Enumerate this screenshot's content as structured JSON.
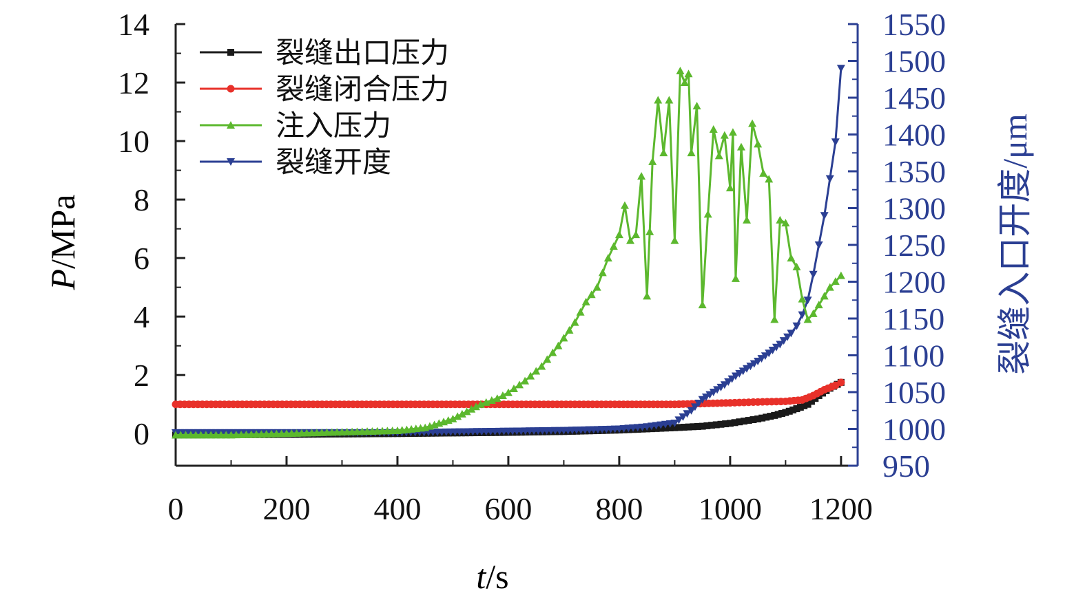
{
  "chart_data": {
    "type": "line",
    "x_axis": {
      "label_italic": "t",
      "label_rest": "/s",
      "range": [
        0,
        1230
      ],
      "ticks": [
        0,
        200,
        400,
        600,
        800,
        1000,
        1200
      ],
      "tick_labels": [
        "0",
        "200",
        "400",
        "600",
        "800",
        "1000",
        "1200"
      ]
    },
    "y_axis_left": {
      "label_italic": "P",
      "label_rest": "/MPa",
      "range": [
        -1.1,
        14
      ],
      "ticks": [
        0,
        2,
        4,
        6,
        8,
        10,
        12,
        14
      ],
      "tick_labels": [
        "0",
        "2",
        "4",
        "6",
        "8",
        "10",
        "12",
        "14"
      ]
    },
    "y_axis_right": {
      "label": "裂缝入口开度/μm",
      "color": "#2b3f93",
      "range": [
        950,
        1550
      ],
      "ticks": [
        950,
        1000,
        1050,
        1100,
        1150,
        1200,
        1250,
        1300,
        1350,
        1400,
        1450,
        1500,
        1550
      ],
      "tick_labels": [
        "950",
        "1000",
        "1050",
        "1100",
        "1150",
        "1200",
        "1250",
        "1300",
        "1350",
        "1400",
        "1450",
        "1500",
        "1550"
      ]
    },
    "legend": {
      "placement": "top-left"
    },
    "series": [
      {
        "name": "裂缝出口压力",
        "color": "#1a1a1a",
        "marker": "square",
        "axis": "left",
        "x": [
          0,
          200,
          400,
          500,
          600,
          700,
          800,
          850,
          900,
          950,
          1000,
          1050,
          1080,
          1100,
          1120,
          1140,
          1160,
          1180,
          1200
        ],
        "y": [
          -0.05,
          -0.03,
          0.0,
          0.02,
          0.04,
          0.07,
          0.12,
          0.16,
          0.2,
          0.25,
          0.35,
          0.5,
          0.62,
          0.72,
          0.85,
          1.0,
          1.3,
          1.55,
          1.75
        ]
      },
      {
        "name": "裂缝闭合压力",
        "color": "#e8312a",
        "marker": "circle",
        "axis": "left",
        "x": [
          0,
          200,
          400,
          600,
          800,
          900,
          1000,
          1050,
          1100,
          1130,
          1150,
          1170,
          1190,
          1200
        ],
        "y": [
          1.0,
          1.0,
          1.0,
          1.0,
          1.0,
          1.0,
          1.05,
          1.08,
          1.1,
          1.15,
          1.3,
          1.5,
          1.65,
          1.75
        ]
      },
      {
        "name": "注入压力",
        "color": "#5cb82e",
        "marker": "triangle-up",
        "axis": "left",
        "x": [
          0,
          100,
          200,
          300,
          400,
          450,
          500,
          550,
          580,
          600,
          630,
          660,
          690,
          720,
          740,
          760,
          780,
          800,
          810,
          820,
          830,
          840,
          850,
          855,
          860,
          870,
          880,
          890,
          900,
          910,
          918,
          925,
          930,
          940,
          950,
          960,
          970,
          980,
          990,
          1000,
          1005,
          1010,
          1020,
          1030,
          1040,
          1050,
          1060,
          1070,
          1080,
          1090,
          1100,
          1110,
          1120,
          1130,
          1140,
          1150,
          1160,
          1170,
          1180,
          1190,
          1200
        ],
        "y": [
          -0.05,
          -0.05,
          0.0,
          0.05,
          0.1,
          0.2,
          0.5,
          1.0,
          1.2,
          1.4,
          1.8,
          2.3,
          3.0,
          3.8,
          4.5,
          5.0,
          6.0,
          6.8,
          7.8,
          6.6,
          6.8,
          8.8,
          4.7,
          6.9,
          9.3,
          11.4,
          9.6,
          11.4,
          6.6,
          12.4,
          12.0,
          12.3,
          9.6,
          11.2,
          4.4,
          7.5,
          10.4,
          9.5,
          10.2,
          8.4,
          10.3,
          5.3,
          9.8,
          7.3,
          10.6,
          9.9,
          8.9,
          8.7,
          3.9,
          7.3,
          7.2,
          6.0,
          5.7,
          4.6,
          3.9,
          4.1,
          4.4,
          4.7,
          5.0,
          5.2,
          5.4
        ]
      },
      {
        "name": "裂缝开度",
        "color": "#2b3f93",
        "marker": "triangle-down",
        "axis": "right",
        "x": [
          0,
          200,
          400,
          600,
          700,
          800,
          850,
          900,
          930,
          950,
          970,
          990,
          1010,
          1030,
          1050,
          1070,
          1090,
          1110,
          1120,
          1130,
          1140,
          1150,
          1160,
          1170,
          1180,
          1190,
          1200
        ],
        "y": [
          995,
          995,
          995,
          997,
          998,
          1000,
          1003,
          1008,
          1025,
          1040,
          1050,
          1060,
          1072,
          1082,
          1092,
          1103,
          1115,
          1130,
          1140,
          1155,
          1175,
          1210,
          1250,
          1290,
          1340,
          1390,
          1490
        ]
      }
    ]
  }
}
